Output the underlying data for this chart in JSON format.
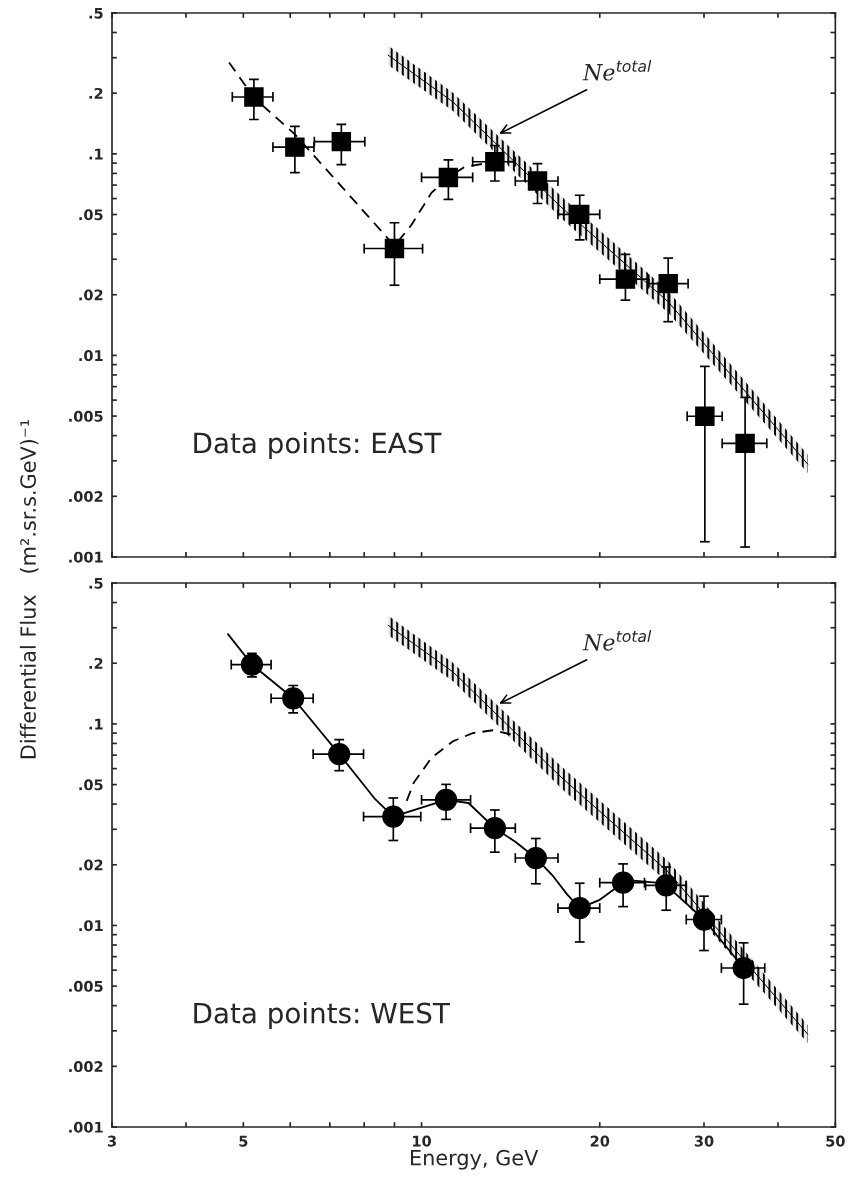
{
  "chart_data": [
    {
      "type": "scatter",
      "log": "xy",
      "tick_labels": "y",
      "ylabel": "Differential Flux   (m².sr.s.GeV)⁻¹",
      "xlim": [
        3,
        50
      ],
      "ylim": [
        0.001,
        0.5
      ],
      "xticks": [
        3,
        {
          "value": 4,
          "label": null
        },
        5,
        {
          "value": 6,
          "label": null
        },
        {
          "value": 7,
          "label": null
        },
        {
          "value": 8,
          "label": null
        },
        {
          "value": 9,
          "label": null
        },
        10,
        20,
        30,
        {
          "value": 40,
          "label": null
        },
        50
      ],
      "yticks": [
        {
          "value": 0.5,
          "label": ".5"
        },
        {
          "value": 0.4,
          "label": null
        },
        {
          "value": 0.3,
          "label": null
        },
        {
          "value": 0.2,
          "label": ".2"
        },
        {
          "value": 0.1,
          "label": ".1"
        },
        {
          "value": 0.09,
          "label": null
        },
        {
          "value": 0.08,
          "label": null
        },
        {
          "value": 0.07,
          "label": null
        },
        {
          "value": 0.06,
          "label": null
        },
        {
          "value": 0.05,
          "label": ".05"
        },
        {
          "value": 0.04,
          "label": null
        },
        {
          "value": 0.03,
          "label": null
        },
        {
          "value": 0.02,
          "label": ".02"
        },
        {
          "value": 0.01,
          "label": ".01"
        },
        {
          "value": 0.009,
          "label": null
        },
        {
          "value": 0.008,
          "label": null
        },
        {
          "value": 0.007,
          "label": null
        },
        {
          "value": 0.006,
          "label": null
        },
        {
          "value": 0.005,
          "label": ".005"
        },
        {
          "value": 0.004,
          "label": null
        },
        {
          "value": 0.003,
          "label": null
        },
        {
          "value": 0.002,
          "label": ".002"
        },
        {
          "value": 0.001,
          "label": ".001"
        }
      ],
      "annotations": [
        "Data points: EAST",
        {
          "text": "Ne$^{total}$",
          "x": 13.4,
          "y": 0.124
        }
      ],
      "series": [
        {
          "type": "line",
          "color": "#000000",
          "x": [
            8.78,
            11.3,
            17.2,
            26.1,
            44.9
          ],
          "values": [
            0.3086,
            0.181,
            0.0545,
            0.01844,
            0.00289
          ],
          "lower": [
            0.276,
            0.163,
            0.0481,
            0.01626,
            0.00261
          ],
          "upper": [
            0.345,
            0.201,
            0.0618,
            0.0209,
            0.00321
          ]
        },
        {
          "type": "line",
          "color": "#000000",
          "line_style": "dashed",
          "marker": "none",
          "x": [
            4.73,
            5.21,
            6.11,
            9.0,
            9.6,
            10.4,
            11.1,
            11.8,
            13.3,
            14.3
          ],
          "values": [
            0.284,
            0.19,
            0.125,
            0.035,
            0.0441,
            0.0642,
            0.0764,
            0.0859,
            0.0914,
            0.0914
          ]
        },
        {
          "color": "#000000",
          "marker": "square",
          "x": [
            5.21,
            6.11,
            7.32,
            9.0,
            11.1,
            13.3,
            15.7,
            18.5,
            22.1,
            26.1,
            30.1,
            35.2
          ],
          "values": [
            0.1915,
            0.108,
            0.115,
            0.0339,
            0.0764,
            0.0914,
            0.0733,
            0.0501,
            0.0239,
            0.0227,
            0.00499,
            0.00366
          ],
          "errors": [
            [
              0.148,
              0.234
            ],
            [
              0.0807,
              0.137
            ],
            [
              0.0885,
              0.14
            ],
            [
              0.0223,
              0.0455
            ],
            [
              0.0595,
              0.0933
            ],
            [
              0.0733,
              0.11
            ],
            [
              0.0567,
              0.0895
            ],
            [
              0.0374,
              0.0623
            ],
            [
              0.0188,
              0.0317
            ],
            [
              0.0147,
              0.0304
            ],
            [
              0.00119,
              0.00882
            ],
            [
              0.00112,
              0.00619
            ]
          ],
          "xerrors": [
            [
              4.79,
              5.61
            ],
            [
              5.61,
              6.58
            ],
            [
              6.59,
              8.02
            ],
            [
              8.0,
              10.04
            ],
            [
              10.0,
              12.2
            ],
            [
              12.2,
              14.4
            ],
            [
              14.4,
              17.0
            ],
            [
              17.0,
              20.0
            ],
            [
              20.0,
              24.2
            ],
            [
              24.2,
              28.2
            ],
            [
              28.1,
              32.2
            ],
            [
              32.2,
              38.3
            ]
          ]
        }
      ]
    },
    {
      "type": "scatter",
      "log": "xy",
      "xlabel": "Energy, GeV",
      "xlim": [
        3,
        50
      ],
      "ylim": [
        0.001,
        0.5
      ],
      "xticks": [
        3,
        {
          "value": 4,
          "label": null
        },
        5,
        {
          "value": 6,
          "label": null
        },
        {
          "value": 7,
          "label": null
        },
        {
          "value": 8,
          "label": null
        },
        {
          "value": 9,
          "label": null
        },
        10,
        20,
        30,
        {
          "value": 40,
          "label": null
        },
        50
      ],
      "yticks": [
        {
          "value": 0.5,
          "label": ".5"
        },
        {
          "value": 0.4,
          "label": null
        },
        {
          "value": 0.3,
          "label": null
        },
        {
          "value": 0.2,
          "label": ".2"
        },
        {
          "value": 0.1,
          "label": ".1"
        },
        {
          "value": 0.09,
          "label": null
        },
        {
          "value": 0.08,
          "label": null
        },
        {
          "value": 0.07,
          "label": null
        },
        {
          "value": 0.06,
          "label": null
        },
        {
          "value": 0.05,
          "label": ".05"
        },
        {
          "value": 0.04,
          "label": null
        },
        {
          "value": 0.03,
          "label": null
        },
        {
          "value": 0.02,
          "label": ".02"
        },
        {
          "value": 0.01,
          "label": ".01"
        },
        {
          "value": 0.009,
          "label": null
        },
        {
          "value": 0.008,
          "label": null
        },
        {
          "value": 0.007,
          "label": null
        },
        {
          "value": 0.006,
          "label": null
        },
        {
          "value": 0.005,
          "label": ".005"
        },
        {
          "value": 0.004,
          "label": null
        },
        {
          "value": 0.003,
          "label": null
        },
        {
          "value": 0.002,
          "label": ".002"
        },
        {
          "value": 0.001,
          "label": ".001"
        }
      ],
      "annotations": [
        "Data points: WEST",
        {
          "text": "Ne$^{total}$",
          "x": 13.4,
          "y": 0.124
        }
      ],
      "series": [
        {
          "type": "line",
          "color": "#000000",
          "x": [
            8.78,
            11.3,
            17.2,
            26.1,
            44.9
          ],
          "values": [
            0.3086,
            0.181,
            0.0545,
            0.01844,
            0.00289
          ],
          "lower": [
            0.276,
            0.163,
            0.0481,
            0.01626,
            0.00261
          ],
          "upper": [
            0.345,
            0.201,
            0.0618,
            0.0209,
            0.00321
          ]
        },
        {
          "type": "line",
          "color": "#000000",
          "line_style": "dashed",
          "marker": "none",
          "x": [
            9.44,
            9.7,
            10.4,
            11.3,
            12.2,
            13.2,
            14.3
          ],
          "values": [
            0.0415,
            0.051,
            0.068,
            0.082,
            0.09,
            0.093,
            0.088
          ]
        },
        {
          "type": "line",
          "color": "#000000",
          "line_style": "solid",
          "marker": "none",
          "x": [
            4.71,
            5.17,
            6.07,
            7.26,
            8.35,
            8.96,
            11.0,
            12.0,
            13.3,
            14.4,
            15.6,
            16.7,
            17.6,
            18.5,
            20.0,
            21.9,
            22.8,
            24.9,
            25.9,
            30.0,
            35.0
          ],
          "values": [
            0.279,
            0.197,
            0.134,
            0.0708,
            0.0423,
            0.0347,
            0.042,
            0.0405,
            0.0304,
            0.026,
            0.0216,
            0.0175,
            0.0143,
            0.0122,
            0.0134,
            0.0163,
            0.0167,
            0.0163,
            0.0158,
            0.0107,
            0.00615
          ]
        },
        {
          "color": "#000000",
          "marker": "circle",
          "x": [
            5.17,
            6.07,
            7.26,
            8.96,
            11.0,
            13.3,
            15.6,
            18.5,
            21.9,
            25.9,
            30.0,
            35.0
          ],
          "values": [
            0.197,
            0.134,
            0.0708,
            0.0347,
            0.042,
            0.0304,
            0.0216,
            0.0122,
            0.0163,
            0.0158,
            0.0107,
            0.00615
          ],
          "errors": [
            [
              0.171,
              0.224
            ],
            [
              0.1134,
              0.155
            ],
            [
              0.0586,
              0.0835
            ],
            [
              0.0264,
              0.0429
            ],
            [
              0.0336,
              0.0501
            ],
            [
              0.0231,
              0.0374
            ],
            [
              0.0161,
              0.027
            ],
            [
              0.00828,
              0.0162
            ],
            [
              0.0124,
              0.0202
            ],
            [
              0.0119,
              0.0195
            ],
            [
              0.00751,
              0.01397
            ],
            [
              0.00407,
              0.0082
            ]
          ],
          "xerrors": [
            [
              4.77,
              5.57
            ],
            [
              5.57,
              6.56
            ],
            [
              6.56,
              7.98
            ],
            [
              7.98,
              9.97
            ],
            [
              10.0,
              12.1
            ],
            [
              12.1,
              14.4
            ],
            [
              14.4,
              17.0
            ],
            [
              17.0,
              20.0
            ],
            [
              20.0,
              23.8
            ],
            [
              23.9,
              28.0
            ],
            [
              28.0,
              32.1
            ],
            [
              32.1,
              38.0
            ]
          ]
        }
      ]
    }
  ]
}
